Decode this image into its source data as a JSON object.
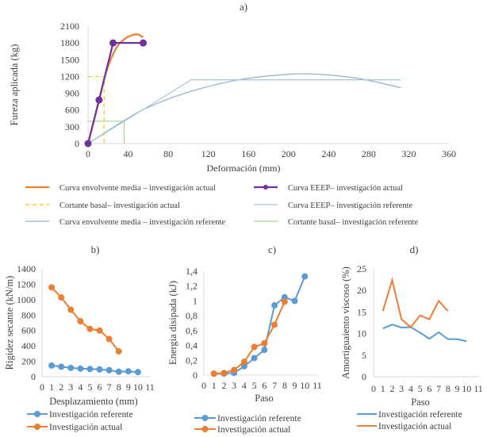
{
  "colors": {
    "orange": "#ED7D31",
    "blue": "#5B9BD5",
    "purple": "#7030A0",
    "yellow": "#FFC000",
    "ref_light": "#A8C3DC",
    "ref_envelope": "#8EAFD0",
    "green": "#A9D18E"
  },
  "chart_data": [
    {
      "id": "a",
      "type": "line",
      "title": "a)",
      "xlabel": "Deformación (mm)",
      "ylabel": "Fureza aplicada (kg)",
      "xlim": [
        0,
        360
      ],
      "ylim": [
        0,
        2100
      ],
      "xticks": [
        "0",
        "40",
        "80",
        "120",
        "160",
        "200",
        "240",
        "280",
        "320",
        "360"
      ],
      "yticks": [
        "0",
        "300",
        "600",
        "900",
        "1200",
        "1500",
        "1800",
        "2100"
      ],
      "grid": false,
      "legend": "bottom",
      "series": [
        {
          "name": "Curva envolvente media – investigación actual",
          "color": "#ED7D31",
          "style": "solid",
          "markers": false,
          "smooth": true,
          "x": [
            0,
            5,
            10,
            16,
            20,
            25,
            30,
            35,
            40,
            45,
            50,
            55
          ],
          "y": [
            0,
            350,
            700,
            1150,
            1380,
            1600,
            1760,
            1850,
            1910,
            1945,
            1950,
            1900
          ]
        },
        {
          "name": "Curva EEEP– investigación actual",
          "color": "#7030A0",
          "style": "solid",
          "markers": true,
          "x": [
            0,
            11,
            25,
            55
          ],
          "y": [
            0,
            780,
            1800,
            1800
          ]
        },
        {
          "name": "Cortante basal– investigación actual",
          "color": "#FFC000",
          "style": "dashed",
          "markers": false,
          "x": [
            0,
            16,
            16
          ],
          "y": [
            1200,
            1200,
            0
          ]
        },
        {
          "name": "Curva EEEP– investigación referente",
          "color": "#A8C3DC",
          "style": "solid",
          "markers": false,
          "x": [
            0,
            103,
            312
          ],
          "y": [
            0,
            1140,
            1140
          ]
        },
        {
          "name": "Curva envolvente media – investigación referente",
          "color": "#8EAFD0",
          "style": "solid",
          "markers": false,
          "smooth": true,
          "x": [
            0,
            35,
            60,
            100,
            150,
            200,
            230,
            260,
            280,
            312
          ],
          "y": [
            0,
            400,
            650,
            920,
            1140,
            1240,
            1240,
            1190,
            1130,
            1000
          ]
        },
        {
          "name": "Cortante basal– investigación referente",
          "color": "#A9D18E",
          "style": "solid",
          "markers": false,
          "x": [
            0,
            36,
            36
          ],
          "y": [
            400,
            400,
            0
          ]
        }
      ],
      "legend_order": [
        0,
        1,
        2,
        3,
        4,
        5
      ]
    },
    {
      "id": "b",
      "type": "line",
      "title": "b)",
      "xlabel": "Desplazamiento (mm)",
      "ylabel": "Rigidez secante (kN/m)",
      "xlim": [
        0,
        11
      ],
      "ylim": [
        0,
        1400
      ],
      "xticks": [
        "0",
        "1",
        "2",
        "3",
        "4",
        "5",
        "6",
        "7",
        "8",
        "9",
        "10",
        "11"
      ],
      "yticks": [
        "0",
        "200",
        "400",
        "600",
        "800",
        "1000",
        "1200",
        "1400"
      ],
      "grid": false,
      "legend": "bottom",
      "series": [
        {
          "name": "Investigación referente",
          "color": "#5B9BD5",
          "markers": true,
          "x": [
            1,
            2,
            3,
            4,
            5,
            6,
            7,
            8,
            9,
            10
          ],
          "y": [
            145,
            130,
            115,
            105,
            100,
            95,
            85,
            65,
            70,
            60
          ]
        },
        {
          "name": "Investigación actual",
          "color": "#ED7D31",
          "markers": true,
          "x": [
            1,
            2,
            3,
            4,
            5,
            6,
            7,
            8
          ],
          "y": [
            1160,
            1030,
            870,
            720,
            620,
            600,
            490,
            330
          ]
        }
      ]
    },
    {
      "id": "c",
      "type": "line",
      "title": "c)",
      "xlabel": "Paso",
      "ylabel": "Energía disipada (kJ)",
      "xlim": [
        0,
        11
      ],
      "ylim": [
        0,
        1.4
      ],
      "xticks": [
        "0",
        "1",
        "2",
        "3",
        "4",
        "5",
        "6",
        "7",
        "8",
        "9",
        "10",
        "11"
      ],
      "yticks": [
        "0",
        "0,2",
        "0,4",
        "0,6",
        "0,8",
        "1",
        "1,2",
        "1,4"
      ],
      "grid": false,
      "legend": "bottom",
      "series": [
        {
          "name": "Investigación referente",
          "color": "#5B9BD5",
          "markers": true,
          "x": [
            1,
            2,
            3,
            4,
            5,
            6,
            7,
            8,
            9,
            10
          ],
          "y": [
            0.02,
            0.02,
            0.03,
            0.12,
            0.23,
            0.34,
            0.94,
            1.05,
            1.0,
            1.33
          ]
        },
        {
          "name": "Investigación actual",
          "color": "#ED7D31",
          "markers": true,
          "x": [
            1,
            2,
            3,
            4,
            5,
            6,
            7,
            8
          ],
          "y": [
            0.02,
            0.03,
            0.07,
            0.18,
            0.38,
            0.43,
            0.68,
            0.99
          ]
        }
      ]
    },
    {
      "id": "d",
      "type": "line",
      "title": "d)",
      "xlabel": "Paso",
      "ylabel": "Amortiguaiento viscoso (%)",
      "xlim": [
        0,
        11
      ],
      "ylim": [
        0,
        25
      ],
      "xticks": [
        "0",
        "1",
        "2",
        "3",
        "4",
        "5",
        "6",
        "7",
        "8",
        "9",
        "10",
        "11"
      ],
      "yticks": [
        "0",
        "5",
        "10",
        "15",
        "20",
        "25"
      ],
      "grid": false,
      "legend": "bottom",
      "series": [
        {
          "name": "Investigación referente",
          "color": "#5B9BD5",
          "markers": false,
          "x": [
            1,
            2,
            3,
            4,
            5,
            6,
            7,
            8,
            9,
            10
          ],
          "y": [
            11.2,
            12.1,
            11.4,
            11.5,
            10.2,
            8.8,
            10.3,
            8.7,
            8.7,
            8.2
          ]
        },
        {
          "name": "Investigación actual",
          "color": "#ED7D31",
          "markers": false,
          "x": [
            1,
            2,
            3,
            4,
            5,
            6,
            7,
            8
          ],
          "y": [
            15.2,
            22.4,
            13.3,
            11.5,
            14.2,
            13.3,
            17.6,
            15.2
          ]
        }
      ]
    }
  ]
}
